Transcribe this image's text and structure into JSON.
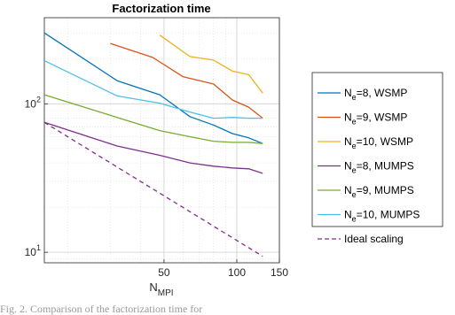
{
  "chart_data": {
    "type": "line",
    "title": "Factorization time",
    "xlabel_main": "N",
    "xlabel_sub": "MPI",
    "ylabel": "",
    "xscale": "log",
    "yscale": "log",
    "xlim": [
      16,
      150
    ],
    "ylim": [
      8.5,
      380
    ],
    "grid": true,
    "minor_grid": true,
    "legend_position": "outside-right",
    "x_ticks": [
      {
        "value": 50,
        "label": "50"
      },
      {
        "value": 100,
        "label": "100"
      },
      {
        "value": 150,
        "label": "150"
      }
    ],
    "y_ticks": [
      {
        "value": 10,
        "base": "10",
        "exp": "1"
      },
      {
        "value": 100,
        "base": "10",
        "exp": "2"
      }
    ],
    "series": [
      {
        "label_pre": "N",
        "label_sub": "e",
        "label_post": "=8, WSMP",
        "color": "#0072BD",
        "dashed": false,
        "x": [
          16,
          32,
          48,
          64,
          80,
          96,
          112,
          128
        ],
        "y": [
          300,
          143,
          115,
          82,
          72,
          63,
          59,
          54
        ]
      },
      {
        "label_pre": "N",
        "label_sub": "e",
        "label_post": "=9, WSMP",
        "color": "#D95319",
        "dashed": false,
        "x": [
          30,
          45,
          60,
          80,
          96,
          112,
          128
        ],
        "y": [
          255,
          205,
          152,
          136,
          106,
          95,
          80
        ]
      },
      {
        "label_pre": "N",
        "label_sub": "e",
        "label_post": "=10, WSMP",
        "color": "#EDB120",
        "dashed": false,
        "x": [
          48,
          64,
          80,
          96,
          112,
          128
        ],
        "y": [
          290,
          208,
          197,
          166,
          157,
          118
        ]
      },
      {
        "label_pre": "N",
        "label_sub": "e",
        "label_post": "=8, MUMPS",
        "color": "#7E2F8E",
        "dashed": false,
        "x": [
          16,
          32,
          48,
          64,
          80,
          96,
          112,
          128
        ],
        "y": [
          75,
          52,
          45,
          40,
          38,
          37,
          36.5,
          34
        ]
      },
      {
        "label_pre": "N",
        "label_sub": "e",
        "label_post": "=9, MUMPS",
        "color": "#77AC30",
        "dashed": false,
        "x": [
          16,
          32,
          48,
          64,
          80,
          96,
          112,
          128
        ],
        "y": [
          115,
          81,
          66,
          60,
          56,
          55,
          55,
          54
        ]
      },
      {
        "label_pre": "N",
        "label_sub": "e",
        "label_post": "=10, MUMPS",
        "color": "#4DBEEE",
        "dashed": false,
        "x": [
          16,
          32,
          48,
          64,
          80,
          96,
          112,
          128
        ],
        "y": [
          195,
          113,
          101,
          88,
          80,
          81,
          80,
          80
        ]
      },
      {
        "label_pre": "",
        "label_sub": "",
        "label_post": "Ideal scaling",
        "color": "#7E2F8E",
        "dashed": true,
        "x": [
          16,
          128
        ],
        "y": [
          75,
          9.4
        ]
      }
    ]
  },
  "caption": "Fig. 2. Comparison of the factorization time for"
}
